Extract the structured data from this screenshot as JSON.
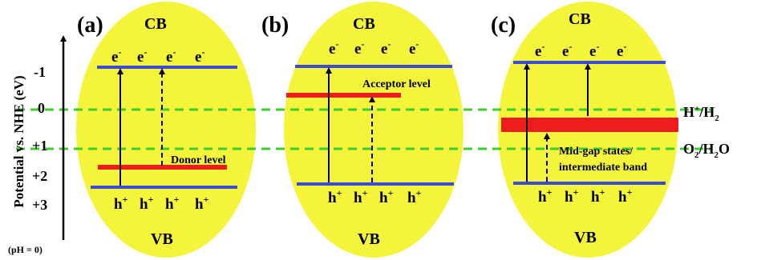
{
  "axis": {
    "label": "Potential vs. NHE (eV)",
    "ph_note": "(pH = 0)",
    "ticks": [
      "-1",
      "0",
      "+1",
      "+2",
      "+3"
    ]
  },
  "redox": {
    "h_species": "H",
    "h_sup": "+",
    "h_sep": "/H",
    "h_sub": "2",
    "o_species": "O",
    "o_sub1": "2",
    "o_rest": "/H",
    "o_sub2": "2",
    "o_end": "O"
  },
  "panels": [
    {
      "tag": "(a)",
      "cb": "CB",
      "vb": "VB",
      "level_label": "Donor level"
    },
    {
      "tag": "(b)",
      "cb": "CB",
      "vb": "VB",
      "level_label": "Acceptor level"
    },
    {
      "tag": "(c)",
      "cb": "CB",
      "vb": "VB",
      "level_label_1": "Mid-gap states/",
      "level_label_2": "intermediate band"
    }
  ],
  "carriers": {
    "electron": "e",
    "electron_sup": "-",
    "hole": "h",
    "hole_sup": "+"
  },
  "colors": {
    "ellipse": "#f4f43a",
    "band_edge": "#3b4bd8",
    "impurity_level": "#ee1c1c",
    "redox_line": "#3ccf2c"
  }
}
